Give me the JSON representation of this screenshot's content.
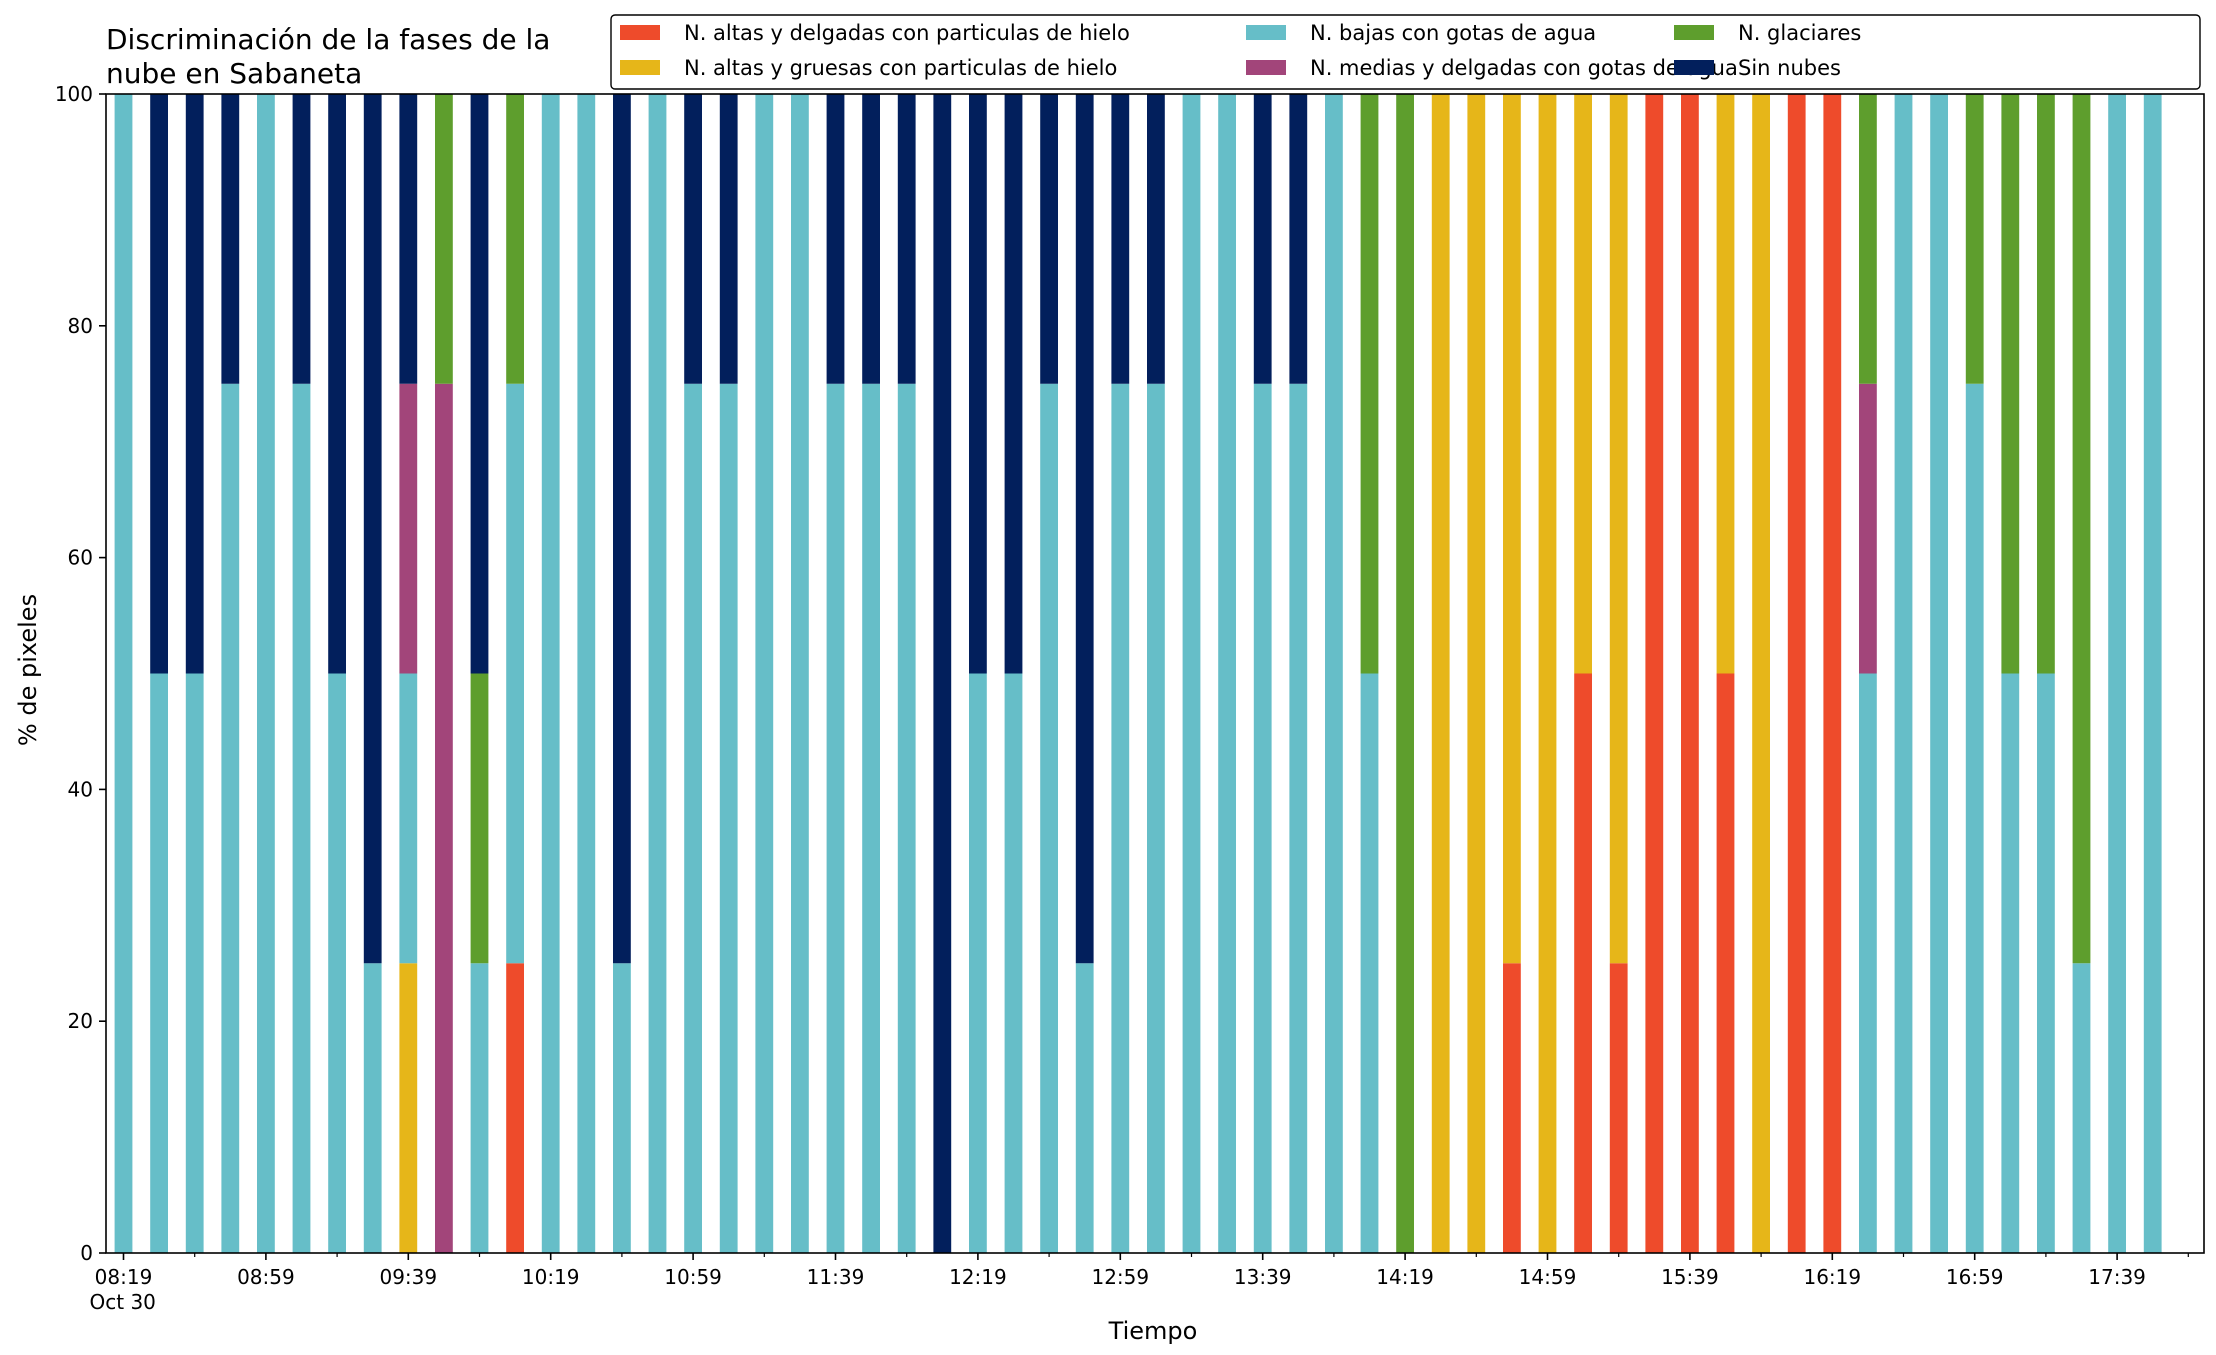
{
  "chart_data": {
    "type": "bar",
    "stacked": true,
    "title": "Discriminación de la fases de la\nnube en Sabaneta",
    "xlabel": "Tiempo",
    "ylabel": "% de pixeles",
    "ylim": [
      0,
      100
    ],
    "yticks": [
      0,
      20,
      40,
      60,
      80,
      100
    ],
    "grid": false,
    "legend_position": "top-right",
    "legend_columns": 3,
    "x_tick_labels": [
      {
        "index": 0,
        "label": "08:19",
        "sublabel": "Oct 30"
      },
      {
        "index": 4,
        "label": "08:59"
      },
      {
        "index": 8,
        "label": "09:39"
      },
      {
        "index": 12,
        "label": "10:19"
      },
      {
        "index": 16,
        "label": "10:59"
      },
      {
        "index": 20,
        "label": "11:39"
      },
      {
        "index": 24,
        "label": "12:19"
      },
      {
        "index": 28,
        "label": "12:59"
      },
      {
        "index": 32,
        "label": "13:39"
      },
      {
        "index": 36,
        "label": "14:19"
      },
      {
        "index": 40,
        "label": "14:59"
      },
      {
        "index": 44,
        "label": "15:39"
      },
      {
        "index": 48,
        "label": "16:19"
      },
      {
        "index": 52,
        "label": "16:59"
      },
      {
        "index": 56,
        "label": "17:39"
      }
    ],
    "series": [
      {
        "name": "N. altas y delgadas con particulas de hielo",
        "color": "#ee4b2b",
        "values": [
          0,
          0,
          0,
          0,
          0,
          0,
          0,
          0,
          0,
          0,
          0,
          25,
          0,
          0,
          0,
          0,
          0,
          0,
          0,
          0,
          0,
          0,
          0,
          0,
          0,
          0,
          0,
          0,
          0,
          0,
          0,
          0,
          0,
          0,
          0,
          0,
          0,
          0,
          0,
          25,
          0,
          50,
          25,
          100,
          100,
          50,
          0,
          100,
          100,
          0,
          0,
          0,
          0,
          0,
          0,
          0,
          0,
          0
        ]
      },
      {
        "name": "N. altas y gruesas con particulas de hielo",
        "color": "#e6b619",
        "values": [
          0,
          0,
          0,
          0,
          0,
          0,
          0,
          0,
          25,
          0,
          0,
          0,
          0,
          0,
          0,
          0,
          0,
          0,
          0,
          0,
          0,
          0,
          0,
          0,
          0,
          0,
          0,
          0,
          0,
          0,
          0,
          0,
          0,
          0,
          0,
          0,
          0,
          100,
          100,
          75,
          100,
          50,
          75,
          0,
          0,
          50,
          100,
          0,
          0,
          0,
          0,
          0,
          0,
          0,
          0,
          0,
          0,
          0
        ]
      },
      {
        "name": "N. bajas con gotas de agua",
        "color": "#66bec8",
        "values": [
          100,
          50,
          50,
          75,
          100,
          75,
          50,
          25,
          25,
          0,
          25,
          50,
          100,
          100,
          25,
          100,
          75,
          75,
          100,
          100,
          75,
          75,
          75,
          0,
          50,
          50,
          75,
          25,
          75,
          75,
          100,
          100,
          75,
          75,
          100,
          50,
          0,
          0,
          0,
          0,
          0,
          0,
          0,
          0,
          0,
          0,
          0,
          0,
          0,
          50,
          100,
          100,
          75,
          50,
          50,
          25,
          100,
          100
        ]
      },
      {
        "name": "N. medias y delgadas con gotas de agua",
        "color": "#a2457a",
        "values": [
          0,
          0,
          0,
          0,
          0,
          0,
          0,
          0,
          25,
          75,
          0,
          0,
          0,
          0,
          0,
          0,
          0,
          0,
          0,
          0,
          0,
          0,
          0,
          0,
          0,
          0,
          0,
          0,
          0,
          0,
          0,
          0,
          0,
          0,
          0,
          0,
          0,
          0,
          0,
          0,
          0,
          0,
          0,
          0,
          0,
          0,
          0,
          0,
          0,
          25,
          0,
          0,
          0,
          0,
          0,
          0,
          0,
          0
        ]
      },
      {
        "name": "N. glaciares",
        "color": "#5e9e2d",
        "values": [
          0,
          0,
          0,
          0,
          0,
          0,
          0,
          0,
          0,
          25,
          25,
          25,
          0,
          0,
          0,
          0,
          0,
          0,
          0,
          0,
          0,
          0,
          0,
          0,
          0,
          0,
          0,
          0,
          0,
          0,
          0,
          0,
          0,
          0,
          0,
          50,
          100,
          0,
          0,
          0,
          0,
          0,
          0,
          0,
          0,
          0,
          0,
          0,
          0,
          25,
          0,
          0,
          25,
          50,
          50,
          75,
          0,
          0
        ]
      },
      {
        "name": "Sin nubes",
        "color": "#021f5c",
        "values": [
          0,
          50,
          50,
          25,
          0,
          25,
          50,
          75,
          25,
          0,
          50,
          0,
          0,
          0,
          75,
          0,
          25,
          25,
          0,
          0,
          25,
          25,
          25,
          100,
          50,
          50,
          25,
          75,
          25,
          25,
          0,
          0,
          25,
          25,
          0,
          0,
          0,
          0,
          0,
          0,
          0,
          0,
          0,
          0,
          0,
          0,
          0,
          0,
          0,
          0,
          0,
          0,
          0,
          0,
          0,
          0,
          0,
          0
        ]
      }
    ]
  }
}
